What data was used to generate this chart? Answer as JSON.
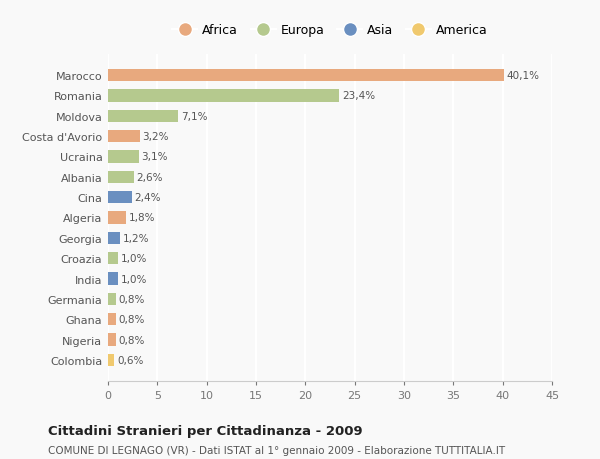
{
  "countries": [
    "Marocco",
    "Romania",
    "Moldova",
    "Costa d'Avorio",
    "Ucraina",
    "Albania",
    "Cina",
    "Algeria",
    "Georgia",
    "Croazia",
    "India",
    "Germania",
    "Ghana",
    "Nigeria",
    "Colombia"
  ],
  "values": [
    40.1,
    23.4,
    7.1,
    3.2,
    3.1,
    2.6,
    2.4,
    1.8,
    1.2,
    1.0,
    1.0,
    0.8,
    0.8,
    0.8,
    0.6
  ],
  "labels": [
    "40,1%",
    "23,4%",
    "7,1%",
    "3,2%",
    "3,1%",
    "2,6%",
    "2,4%",
    "1,8%",
    "1,2%",
    "1,0%",
    "1,0%",
    "0,8%",
    "0,8%",
    "0,8%",
    "0,6%"
  ],
  "continents": [
    "Africa",
    "Europa",
    "Europa",
    "Africa",
    "Europa",
    "Europa",
    "Asia",
    "Africa",
    "Asia",
    "Europa",
    "Asia",
    "Europa",
    "Africa",
    "Africa",
    "America"
  ],
  "colors": {
    "Africa": "#E8A97E",
    "Europa": "#B5C98E",
    "Asia": "#6A8FC0",
    "America": "#F0C96E"
  },
  "xlim": [
    0,
    45
  ],
  "xticks": [
    0,
    5,
    10,
    15,
    20,
    25,
    30,
    35,
    40,
    45
  ],
  "title": "Cittadini Stranieri per Cittadinanza - 2009",
  "subtitle": "COMUNE DI LEGNAGO (VR) - Dati ISTAT al 1° gennaio 2009 - Elaborazione TUTTITALIA.IT",
  "background_color": "#f9f9f9",
  "grid_color": "#ffffff",
  "bar_height": 0.6,
  "legend_order": [
    "Africa",
    "Europa",
    "Asia",
    "America"
  ]
}
